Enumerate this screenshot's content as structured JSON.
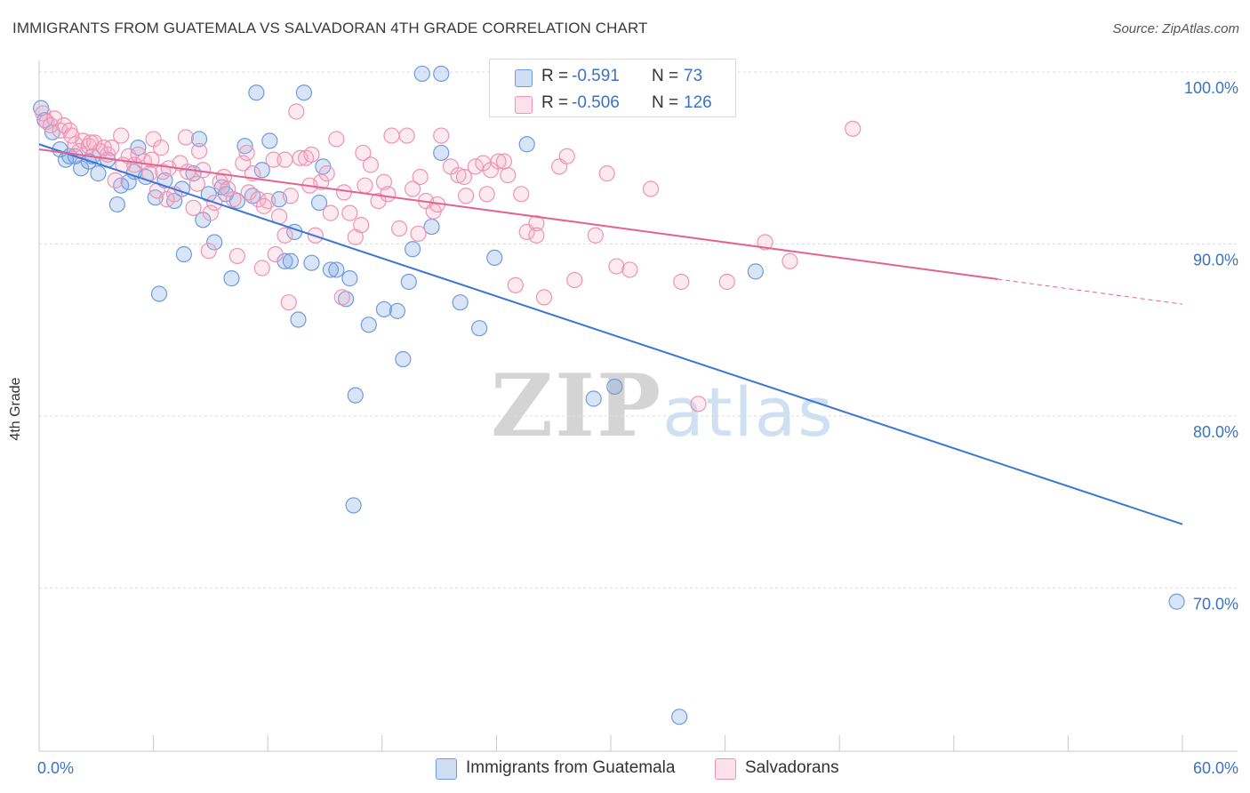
{
  "title": "IMMIGRANTS FROM GUATEMALA VS SALVADORAN 4TH GRADE CORRELATION CHART",
  "source": "Source: ZipAtlas.com",
  "watermark": {
    "part1": "ZIP",
    "part2": "atlas"
  },
  "legend_top": {
    "rows": [
      {
        "r_label": "R =",
        "r_value": "-0.591",
        "n_label": "N =",
        "n_value": "73"
      },
      {
        "r_label": "R =",
        "r_value": "-0.506",
        "n_label": "N =",
        "n_value": "126"
      }
    ]
  },
  "colors": {
    "blue": "#3b76d6",
    "blue_fill": "rgba(120,160,225,0.28)",
    "blue_stroke": "#6d9be0",
    "pink": "#e2638f",
    "pink_fill": "rgba(245,170,195,0.25)",
    "pink_stroke": "#ee93b3",
    "axis_label": "#3b72c4",
    "grid": "#dcdcdc"
  },
  "chart_data": {
    "type": "scatter",
    "title": "IMMIGRANTS FROM GUATEMALA VS SALVADORAN 4TH GRADE CORRELATION CHART",
    "xlabel": "",
    "ylabel": "4th Grade",
    "xlim": [
      0,
      60
    ],
    "ylim": [
      60.5,
      101.5
    ],
    "x_ticks": [
      "0.0%",
      "60.0%"
    ],
    "y_ticks": [
      {
        "value": 100,
        "label": "100.0%"
      },
      {
        "value": 90,
        "label": "90.0%"
      },
      {
        "value": 80,
        "label": "80.0%"
      },
      {
        "value": 70,
        "label": "70.0%"
      }
    ],
    "grid": true,
    "legend_position": "bottom",
    "series": [
      {
        "name": "Immigrants from Guatemala",
        "color": "blue",
        "trend": {
          "x": [
            0,
            60
          ],
          "y": [
            95.8,
            73.7
          ],
          "dashed_from": null
        },
        "points": [
          [
            0.1,
            97.9
          ],
          [
            0.3,
            97.2
          ],
          [
            0.7,
            96.5
          ],
          [
            1.1,
            95.5
          ],
          [
            1.4,
            94.9
          ],
          [
            1.6,
            95.1
          ],
          [
            1.9,
            95.1
          ],
          [
            2.2,
            94.4
          ],
          [
            2.6,
            94.8
          ],
          [
            2.8,
            95.1
          ],
          [
            3.1,
            94.1
          ],
          [
            3.6,
            94.9
          ],
          [
            4.1,
            92.3
          ],
          [
            4.3,
            93.4
          ],
          [
            4.7,
            93.6
          ],
          [
            5.0,
            94.2
          ],
          [
            5.2,
            95.6
          ],
          [
            5.6,
            93.9
          ],
          [
            6.1,
            92.7
          ],
          [
            6.3,
            87.1
          ],
          [
            6.6,
            93.7
          ],
          [
            7.1,
            92.5
          ],
          [
            7.5,
            93.2
          ],
          [
            7.6,
            89.4
          ],
          [
            8.1,
            94.1
          ],
          [
            8.4,
            96.1
          ],
          [
            8.6,
            91.4
          ],
          [
            8.9,
            92.9
          ],
          [
            9.2,
            90.1
          ],
          [
            9.6,
            93.3
          ],
          [
            9.8,
            92.9
          ],
          [
            10.1,
            88.0
          ],
          [
            10.4,
            92.5
          ],
          [
            10.8,
            95.7
          ],
          [
            11.2,
            92.8
          ],
          [
            11.4,
            98.8
          ],
          [
            11.7,
            94.3
          ],
          [
            12.1,
            96.0
          ],
          [
            12.6,
            92.6
          ],
          [
            12.9,
            89.0
          ],
          [
            13.2,
            89.0
          ],
          [
            13.4,
            90.7
          ],
          [
            13.6,
            85.6
          ],
          [
            13.9,
            98.8
          ],
          [
            14.3,
            88.9
          ],
          [
            14.7,
            92.4
          ],
          [
            14.9,
            94.5
          ],
          [
            15.3,
            88.5
          ],
          [
            15.6,
            88.5
          ],
          [
            16.1,
            86.8
          ],
          [
            16.3,
            88.0
          ],
          [
            16.6,
            81.2
          ],
          [
            17.3,
            85.3
          ],
          [
            18.1,
            86.2
          ],
          [
            18.8,
            86.1
          ],
          [
            19.1,
            83.3
          ],
          [
            19.4,
            87.8
          ],
          [
            19.6,
            89.7
          ],
          [
            20.1,
            99.9
          ],
          [
            20.6,
            91.0
          ],
          [
            21.1,
            95.3
          ],
          [
            21.1,
            99.9
          ],
          [
            22.1,
            86.6
          ],
          [
            23.1,
            85.1
          ],
          [
            23.9,
            89.2
          ],
          [
            25.6,
            95.8
          ],
          [
            29.1,
            81.0
          ],
          [
            30.2,
            81.7
          ],
          [
            33.6,
            62.5
          ],
          [
            36.1,
            99.9
          ],
          [
            37.6,
            88.4
          ],
          [
            59.7,
            69.2
          ],
          [
            16.5,
            74.8
          ]
        ]
      },
      {
        "name": "Salvadorans",
        "color": "pink",
        "trend": {
          "x": [
            0,
            60
          ],
          "y": [
            95.5,
            86.5
          ],
          "dashed_from": 50.3
        },
        "points": [
          [
            0.2,
            97.6
          ],
          [
            0.4,
            97.1
          ],
          [
            0.6,
            96.9
          ],
          [
            0.8,
            97.3
          ],
          [
            1.1,
            96.6
          ],
          [
            1.3,
            96.9
          ],
          [
            1.6,
            96.6
          ],
          [
            1.9,
            95.8
          ],
          [
            2.1,
            95.4
          ],
          [
            2.3,
            96.0
          ],
          [
            2.6,
            95.7
          ],
          [
            2.9,
            95.9
          ],
          [
            3.2,
            95.4
          ],
          [
            3.4,
            95.6
          ],
          [
            3.6,
            95.2
          ],
          [
            4.0,
            93.7
          ],
          [
            4.3,
            96.3
          ],
          [
            4.7,
            95.1
          ],
          [
            5.0,
            94.6
          ],
          [
            5.2,
            95.2
          ],
          [
            5.5,
            94.8
          ],
          [
            5.8,
            94.1
          ],
          [
            6.0,
            96.1
          ],
          [
            6.2,
            93.1
          ],
          [
            6.5,
            94.2
          ],
          [
            6.8,
            94.4
          ],
          [
            7.1,
            92.9
          ],
          [
            7.4,
            94.7
          ],
          [
            7.8,
            94.2
          ],
          [
            8.1,
            92.1
          ],
          [
            8.3,
            93.5
          ],
          [
            8.6,
            94.3
          ],
          [
            8.9,
            89.6
          ],
          [
            9.2,
            92.4
          ],
          [
            9.5,
            93.6
          ],
          [
            9.7,
            93.9
          ],
          [
            9.9,
            93.2
          ],
          [
            10.2,
            92.6
          ],
          [
            10.4,
            89.3
          ],
          [
            10.7,
            94.7
          ],
          [
            11.0,
            93.0
          ],
          [
            11.2,
            94.1
          ],
          [
            11.5,
            92.6
          ],
          [
            11.7,
            88.6
          ],
          [
            12.0,
            92.5
          ],
          [
            12.3,
            94.9
          ],
          [
            12.6,
            91.6
          ],
          [
            12.9,
            90.5
          ],
          [
            13.2,
            92.8
          ],
          [
            13.5,
            97.7
          ],
          [
            13.7,
            95.0
          ],
          [
            14.0,
            95.0
          ],
          [
            14.3,
            95.2
          ],
          [
            14.5,
            90.5
          ],
          [
            14.8,
            93.6
          ],
          [
            15.1,
            94.1
          ],
          [
            15.3,
            91.8
          ],
          [
            15.6,
            96.1
          ],
          [
            16.0,
            93.0
          ],
          [
            16.3,
            91.8
          ],
          [
            16.6,
            90.4
          ],
          [
            17.0,
            95.3
          ],
          [
            17.4,
            94.6
          ],
          [
            17.8,
            92.5
          ],
          [
            18.1,
            93.6
          ],
          [
            18.5,
            96.3
          ],
          [
            18.9,
            90.9
          ],
          [
            19.3,
            96.3
          ],
          [
            19.6,
            93.2
          ],
          [
            20.0,
            93.9
          ],
          [
            20.3,
            92.5
          ],
          [
            20.7,
            91.9
          ],
          [
            21.1,
            96.3
          ],
          [
            21.6,
            94.5
          ],
          [
            22.0,
            94.0
          ],
          [
            22.4,
            92.8
          ],
          [
            22.9,
            94.5
          ],
          [
            23.3,
            94.7
          ],
          [
            23.7,
            94.3
          ],
          [
            24.1,
            94.8
          ],
          [
            24.6,
            94.0
          ],
          [
            25.0,
            87.6
          ],
          [
            25.6,
            90.7
          ],
          [
            26.1,
            91.2
          ],
          [
            26.5,
            86.9
          ],
          [
            27.3,
            94.5
          ],
          [
            27.7,
            95.1
          ],
          [
            28.1,
            87.9
          ],
          [
            29.2,
            90.5
          ],
          [
            29.8,
            94.1
          ],
          [
            30.3,
            88.7
          ],
          [
            31.0,
            88.5
          ],
          [
            32.1,
            93.2
          ],
          [
            33.7,
            87.8
          ],
          [
            34.6,
            80.7
          ],
          [
            36.1,
            87.8
          ],
          [
            38.1,
            90.1
          ],
          [
            39.4,
            89.0
          ],
          [
            42.7,
            96.7
          ],
          [
            18.3,
            92.9
          ],
          [
            6.7,
            92.6
          ],
          [
            10.9,
            95.3
          ],
          [
            19.9,
            90.6
          ],
          [
            23.5,
            92.9
          ],
          [
            5.9,
            94.9
          ],
          [
            14.2,
            93.4
          ],
          [
            8.4,
            95.4
          ],
          [
            22.3,
            93.9
          ],
          [
            17.1,
            93.4
          ],
          [
            9.0,
            91.8
          ],
          [
            12.4,
            89.4
          ],
          [
            15.9,
            86.9
          ],
          [
            26.1,
            90.5
          ],
          [
            4.4,
            94.6
          ],
          [
            13.1,
            86.6
          ],
          [
            20.9,
            92.3
          ],
          [
            7.7,
            96.2
          ],
          [
            11.8,
            92.2
          ],
          [
            16.9,
            91.1
          ],
          [
            25.3,
            92.9
          ],
          [
            2.7,
            95.9
          ],
          [
            3.8,
            95.6
          ],
          [
            6.4,
            95.6
          ],
          [
            1.7,
            96.3
          ],
          [
            24.4,
            94.8
          ],
          [
            12.9,
            94.9
          ]
        ]
      }
    ]
  },
  "legend_bottom": [
    {
      "label": "Immigrants from Guatemala"
    },
    {
      "label": "Salvadorans"
    }
  ]
}
